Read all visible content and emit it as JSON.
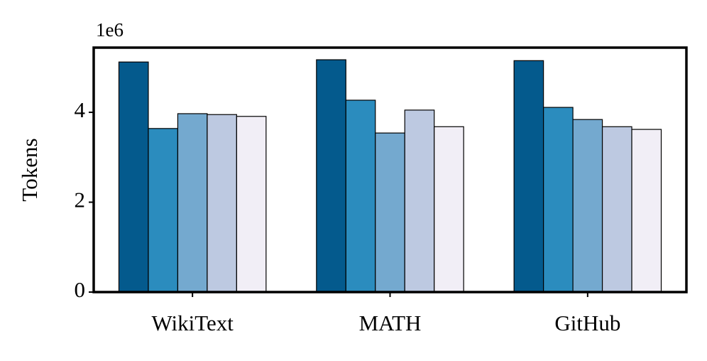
{
  "chart_data": {
    "type": "bar",
    "y_label": "Tokens",
    "offset_label": "1e6",
    "categories": [
      "WikiText",
      "MATH",
      "GitHub"
    ],
    "series": [
      {
        "color": "#045a8d",
        "values": [
          5.12,
          5.17,
          5.15
        ]
      },
      {
        "color": "#2b8cbe",
        "values": [
          3.64,
          4.27,
          4.11
        ]
      },
      {
        "color": "#74a9cf",
        "values": [
          3.97,
          3.54,
          3.84
        ]
      },
      {
        "color": "#bdc9e1",
        "values": [
          3.95,
          4.05,
          3.68
        ]
      },
      {
        "color": "#f1eef6",
        "values": [
          3.91,
          3.68,
          3.62
        ]
      }
    ],
    "ylim": [
      0,
      5.44
    ],
    "yticks": [
      0,
      2,
      4
    ],
    "grid": false
  }
}
